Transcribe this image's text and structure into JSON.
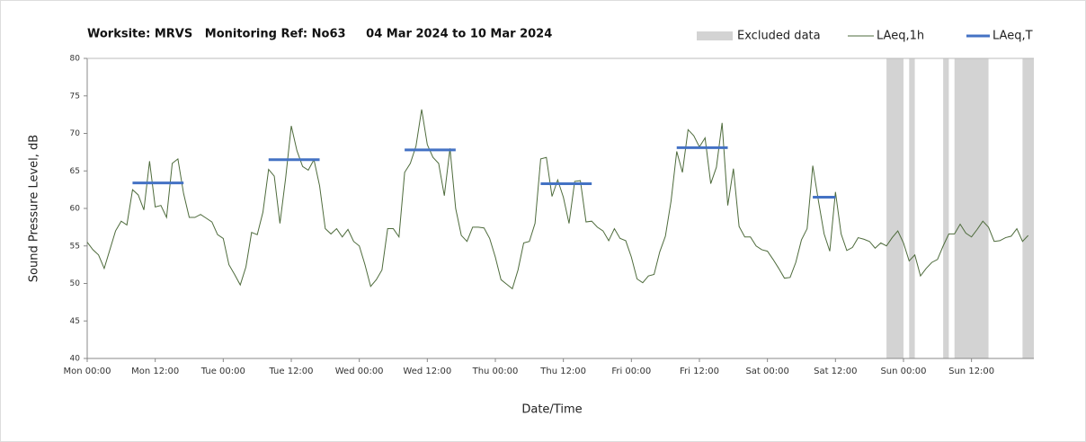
{
  "chart_data": {
    "type": "line",
    "title": "Worksite: MRVS   Monitoring Ref: No63     04 Mar 2024 to 10 Mar 2024",
    "xlabel": "Date/Time",
    "ylabel": "Sound Pressure Level, dB",
    "x": [
      0,
      1,
      2,
      3,
      4,
      5,
      6,
      7,
      8,
      9,
      10,
      11,
      12,
      13,
      14,
      15,
      16,
      17,
      18,
      19,
      20,
      21,
      22,
      23,
      24,
      25,
      26,
      27,
      28,
      29,
      30,
      31,
      32,
      33,
      34,
      35,
      36,
      37,
      38,
      39,
      40,
      41,
      42,
      43,
      44,
      45,
      46,
      47,
      48,
      49,
      50,
      51,
      52,
      53,
      54,
      55,
      56,
      57,
      58,
      59,
      60,
      61,
      62,
      63,
      64,
      65,
      66,
      67,
      68,
      69,
      70,
      71,
      72,
      73,
      74,
      75,
      76,
      77,
      78,
      79,
      80,
      81,
      82,
      83,
      84,
      85,
      86,
      87,
      88,
      89,
      90,
      91,
      92,
      93,
      94,
      95,
      96,
      97,
      98,
      99,
      100,
      101,
      102,
      103,
      104,
      105,
      106,
      107,
      108,
      109,
      110,
      111,
      112,
      113,
      114,
      115,
      116,
      117,
      118,
      119,
      120,
      121,
      122,
      123,
      124,
      125,
      126,
      127,
      128,
      129,
      130,
      131,
      132,
      133,
      134,
      135,
      136,
      137,
      138,
      139,
      140,
      141,
      142,
      143,
      144,
      145,
      146,
      147,
      148,
      149,
      150,
      151,
      152,
      153,
      154,
      155,
      156,
      157,
      158,
      159,
      160,
      161,
      162,
      163,
      164,
      165,
      166
    ],
    "series": [
      {
        "name": "LAeq,1h",
        "color": "#4e6b3c",
        "values": [
          55.5,
          54.5,
          53.8,
          52,
          54.5,
          57,
          58.3,
          57.8,
          62.5,
          61.8,
          59.8,
          66.3,
          60.2,
          60.4,
          58.8,
          66,
          66.6,
          62,
          58.8,
          58.8,
          59.2,
          58.7,
          58.2,
          56.5,
          56,
          52.5,
          51.2,
          49.8,
          52.2,
          56.8,
          56.5,
          59.5,
          65.2,
          64.3,
          58,
          64,
          71,
          67.7,
          65.6,
          65.1,
          66.5,
          63,
          57.3,
          56.6,
          57.3,
          56.2,
          57.2,
          55.6,
          55,
          52.5,
          49.6,
          50.5,
          51.8,
          57.3,
          57.3,
          56.2,
          64.8,
          66,
          68.3,
          73.2,
          68.5,
          66.8,
          66,
          61.7,
          68,
          60,
          56.4,
          55.6,
          57.5,
          57.5,
          57.4,
          56,
          53.5,
          50.5,
          49.9,
          49.3,
          51.8,
          55.4,
          55.6,
          58,
          66.6,
          66.8,
          61.6,
          63.8,
          61.5,
          58,
          63.6,
          63.7,
          58.2,
          58.3,
          57.5,
          57,
          55.7,
          57.3,
          56,
          55.7,
          53.5,
          50.6,
          50.1,
          51,
          51.2,
          54.2,
          56.3,
          61,
          67.6,
          64.8,
          70.5,
          69.7,
          68.2,
          69.4,
          63.3,
          65.5,
          71.4,
          60.4,
          65.3,
          57.6,
          56.2,
          56.2,
          55,
          54.5,
          54.3,
          53.2,
          52,
          50.7,
          50.8,
          52.8,
          55.8,
          57.3,
          65.7,
          61,
          56.6,
          54.3,
          62.2,
          56.6,
          54.4,
          54.8,
          56.1,
          55.9,
          55.6,
          54.7,
          55.4,
          55,
          56.1,
          57,
          55.4,
          53,
          53.8,
          51,
          52,
          52.8,
          53.2,
          55,
          56.6,
          56.6,
          57.9,
          56.7,
          56.2,
          57.2,
          58.3,
          57.5,
          55.6,
          55.7,
          56.1,
          56.3,
          57.3,
          55.6,
          56.4
        ]
      }
    ],
    "periods": {
      "name": "LAeq,T",
      "color": "#4472c4",
      "items": [
        {
          "start": 8,
          "end": 17,
          "value": 63.4
        },
        {
          "start": 32,
          "end": 41,
          "value": 66.5
        },
        {
          "start": 56,
          "end": 65,
          "value": 67.8
        },
        {
          "start": 80,
          "end": 89,
          "value": 63.3
        },
        {
          "start": 104,
          "end": 113,
          "value": 68.1
        },
        {
          "start": 128,
          "end": 132,
          "value": 61.5
        }
      ]
    },
    "excluded": {
      "name": "Excluded data",
      "color": "#d3d3d3",
      "ranges": [
        [
          141,
          144
        ],
        [
          145,
          146
        ],
        [
          151,
          152
        ],
        [
          153,
          159
        ],
        [
          165,
          167
        ]
      ]
    },
    "xlim": [
      0,
      167
    ],
    "ylim": [
      40,
      80
    ],
    "xticks": [
      {
        "value": 0,
        "label": "Mon 00:00"
      },
      {
        "value": 12,
        "label": "Mon 12:00"
      },
      {
        "value": 24,
        "label": "Tue 00:00"
      },
      {
        "value": 36,
        "label": "Tue 12:00"
      },
      {
        "value": 48,
        "label": "Wed 00:00"
      },
      {
        "value": 60,
        "label": "Wed 12:00"
      },
      {
        "value": 72,
        "label": "Thu 00:00"
      },
      {
        "value": 84,
        "label": "Thu 12:00"
      },
      {
        "value": 96,
        "label": "Fri 00:00"
      },
      {
        "value": 108,
        "label": "Fri 12:00"
      },
      {
        "value": 120,
        "label": "Sat 00:00"
      },
      {
        "value": 132,
        "label": "Sat 12:00"
      },
      {
        "value": 144,
        "label": "Sun 00:00"
      },
      {
        "value": 156,
        "label": "Sun 12:00"
      }
    ],
    "yticks": [
      40,
      45,
      50,
      55,
      60,
      65,
      70,
      75,
      80
    ],
    "legend": "top right"
  }
}
